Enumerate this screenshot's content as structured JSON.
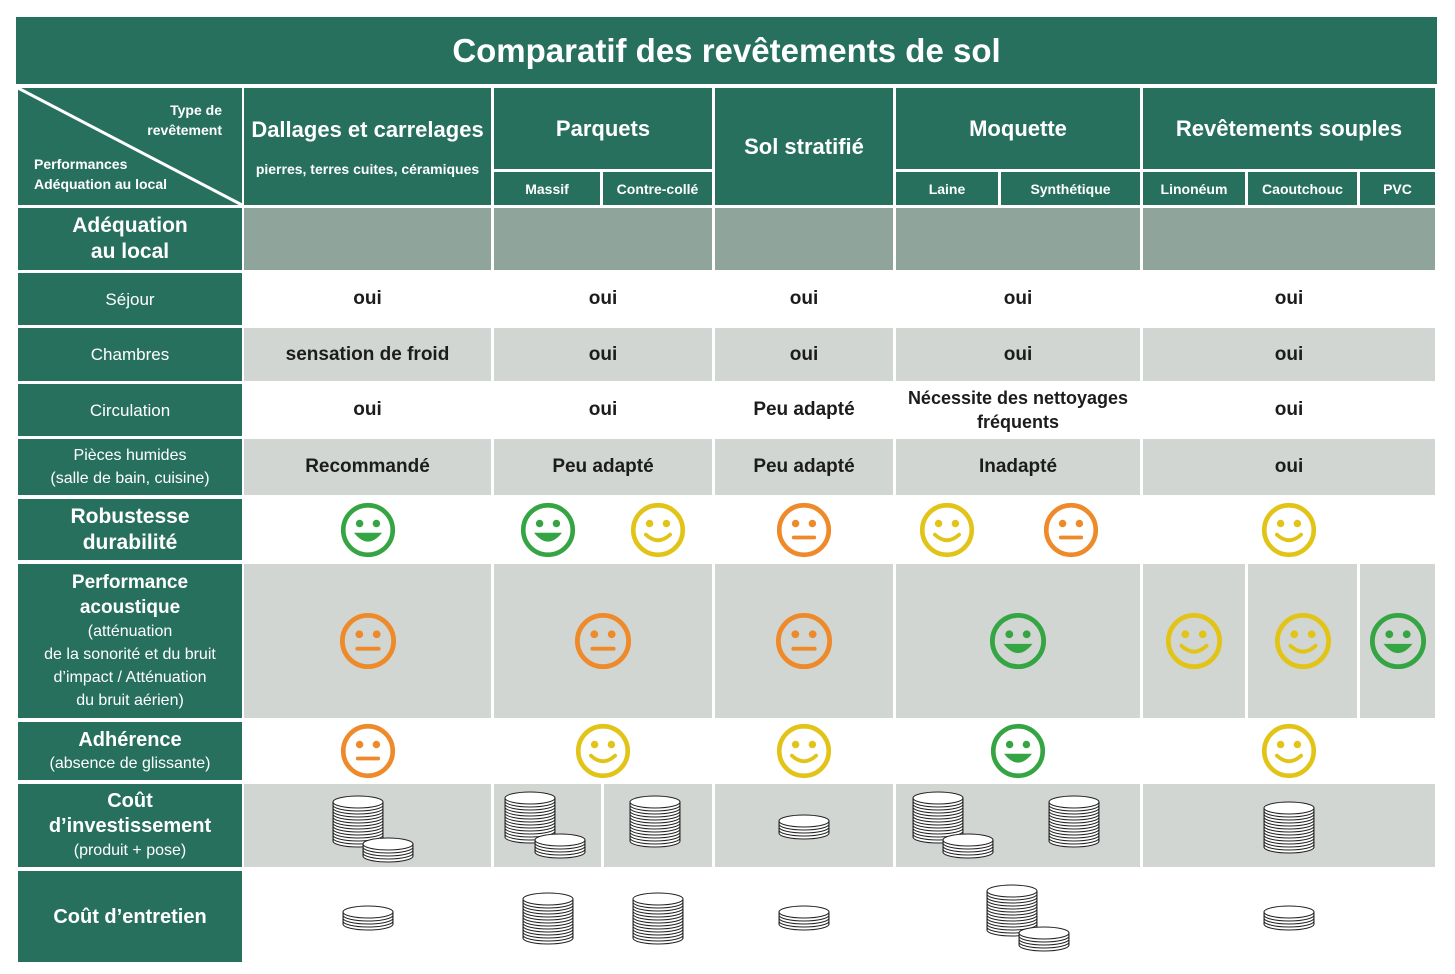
{
  "title": "Comparatif des revêtements de sol",
  "corner": {
    "type_line1": "Type de",
    "type_line2": "revêtement",
    "perf_line1": "Performances",
    "perf_line2": "Adéquation au local"
  },
  "columns": {
    "dallages": {
      "label": "Dallages et carrelages",
      "sub": "pierres, terres cuites, céramiques"
    },
    "parquets": {
      "label": "Parquets",
      "sub": [
        "Massif",
        "Contre-collé"
      ]
    },
    "stratifie": {
      "label": "Sol stratifié"
    },
    "moquette": {
      "label": "Moquette",
      "sub": [
        "Laine",
        "Synthétique"
      ]
    },
    "souples": {
      "label": "Revêtements souples",
      "sub": [
        "Linonéum",
        "Caoutchouc",
        "PVC"
      ]
    }
  },
  "rows": {
    "adequation": {
      "label_lines": [
        "Adéquation",
        "au local"
      ]
    },
    "sejour": {
      "label": "Séjour",
      "values": [
        "oui",
        "oui",
        "oui",
        "oui",
        "oui"
      ]
    },
    "chambres": {
      "label": "Chambres",
      "values": [
        "sensation de froid",
        "oui",
        "oui",
        "oui",
        "oui"
      ]
    },
    "circulation": {
      "label": "Circulation",
      "values": [
        "oui",
        "oui",
        "Peu adapté",
        "Nécessite des nettoyages fréquents",
        "oui"
      ]
    },
    "humides": {
      "label_lines": [
        "Pièces humides",
        "(salle de bain, cuisine)"
      ],
      "values": [
        "Recommandé",
        "Peu adapté",
        "Peu adapté",
        "Inadapté",
        "oui"
      ]
    },
    "robustesse": {
      "label_lines": [
        "Robustesse",
        "durabilité"
      ],
      "ratings": [
        "good",
        "good",
        "ok",
        "medium",
        "ok",
        "medium",
        "ok"
      ]
    },
    "acoustique": {
      "label_lines": [
        "Performance",
        "acoustique",
        "(atténuation",
        "de la sonorité et du bruit",
        "d’impact / Atténuation",
        "du bruit aérien)"
      ],
      "ratings": [
        "medium",
        "medium",
        "medium",
        "good",
        "ok",
        "ok",
        "good"
      ]
    },
    "adherence": {
      "label_lines": [
        "Adhérence",
        "(absence de glissante)"
      ],
      "ratings": [
        "medium",
        "ok",
        "ok",
        "good",
        "ok"
      ]
    },
    "investissement": {
      "label_lines": [
        "Coût",
        "d’investissement",
        "(produit + pose)"
      ],
      "coin_stacks": [
        "1 tall + 1 small",
        "1 tall + 1 small",
        "1 tall",
        "1 small",
        "1 tall + 1 small",
        "1 tall",
        "1 tall"
      ]
    },
    "entretien": {
      "label": "Coût d’entretien",
      "coin_stacks": [
        "1 small",
        "1 tall",
        "1 tall",
        "1 small",
        "1 tall + 1 small",
        "1 small"
      ]
    }
  },
  "colors": {
    "header_green": "#28705e",
    "band_gray": "#8fa59b",
    "light_gray": "#d1d6d3",
    "smiley_good": "#35a544",
    "smiley_ok": "#e2c419",
    "smiley_medium": "#ee8a2a"
  },
  "icons": {
    "good": "smiley-happy-icon",
    "ok": "smiley-smile-icon",
    "medium": "smiley-neutral-icon",
    "coins": "coin-stack-icon"
  }
}
